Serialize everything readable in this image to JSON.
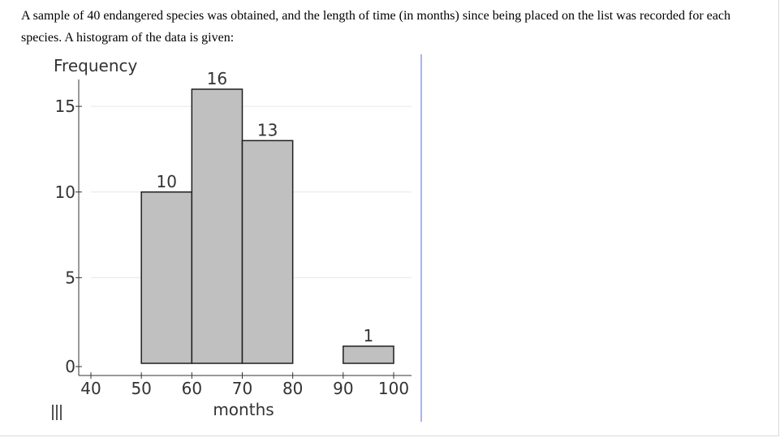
{
  "question": {
    "text": "A sample of 40 endangered species was obtained, and the length of time (in months) since being placed on the list was recorded for each species. A histogram of the data is given:"
  },
  "chart_data": {
    "type": "histogram",
    "ylabel": "Frequency",
    "xlabel": "months",
    "bins": [
      {
        "start": 50,
        "end": 60,
        "count": 10
      },
      {
        "start": 60,
        "end": 70,
        "count": 16
      },
      {
        "start": 70,
        "end": 80,
        "count": 13
      },
      {
        "start": 90,
        "end": 100,
        "count": 1
      }
    ],
    "x_ticks": [
      40,
      50,
      60,
      70,
      80,
      90,
      100
    ],
    "y_ticks": [
      0,
      5,
      10,
      15
    ],
    "xlim": [
      40,
      100
    ],
    "ylim": [
      0,
      16
    ],
    "gridlines": "horizontal",
    "colors": {
      "bar_fill": "#c0c0c0",
      "bar_stroke": "#1f1f1f",
      "grid": "#e6e6e6",
      "axis": "#333333"
    }
  },
  "menu": {
    "icon": "menu-bars-icon"
  }
}
